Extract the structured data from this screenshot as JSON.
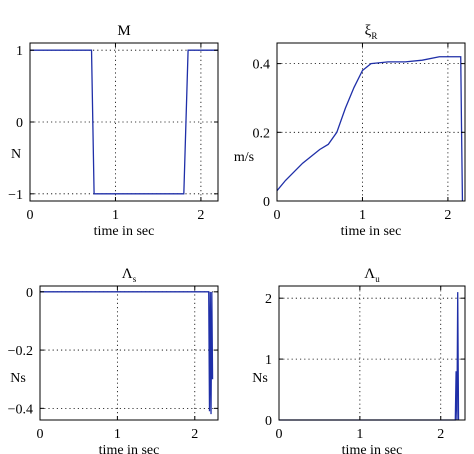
{
  "chart_data": [
    {
      "type": "line",
      "title": "M",
      "xlabel": "time in sec",
      "ylabel": "N",
      "xlim": [
        0,
        2.2
      ],
      "ylim": [
        -1.1,
        1.1
      ],
      "grid": true,
      "xticks": [
        0,
        1,
        2
      ],
      "yticks": [
        -1,
        0,
        1
      ],
      "xtick_labels": [
        "0",
        "1",
        "2"
      ],
      "ytick_labels": [
        "−1",
        "0",
        "1"
      ],
      "series": [
        {
          "color": "#1f2fa8",
          "x": [
            0,
            0.72,
            0.75,
            1.8,
            1.85,
            2.2
          ],
          "y": [
            1,
            1,
            -1,
            -1,
            1,
            1
          ]
        }
      ]
    },
    {
      "type": "line",
      "title": "ξ",
      "title_subscript": "R",
      "xlabel": "time in sec",
      "ylabel": "m/s",
      "xlim": [
        0,
        2.2
      ],
      "ylim": [
        0,
        0.46
      ],
      "grid": true,
      "xticks": [
        0,
        1,
        2
      ],
      "yticks": [
        0,
        0.2,
        0.4
      ],
      "xtick_labels": [
        "0",
        "1",
        "2"
      ],
      "ytick_labels": [
        "0",
        "0.2",
        "0.4"
      ],
      "series": [
        {
          "color": "#1f2fa8",
          "x": [
            0,
            0.1,
            0.3,
            0.5,
            0.6,
            0.7,
            0.8,
            0.9,
            1.0,
            1.1,
            1.3,
            1.5,
            1.7,
            1.9,
            2.0,
            2.1,
            2.15,
            2.16,
            2.17
          ],
          "y": [
            0.03,
            0.06,
            0.11,
            0.15,
            0.165,
            0.2,
            0.27,
            0.33,
            0.38,
            0.4,
            0.405,
            0.405,
            0.41,
            0.42,
            0.42,
            0.42,
            0.42,
            0.2,
            0.0
          ]
        }
      ]
    },
    {
      "type": "line",
      "title": "Λ",
      "title_subscript": "s",
      "xlabel": "time in sec",
      "ylabel": "Ns",
      "xlim": [
        0,
        2.3
      ],
      "ylim": [
        -0.44,
        0.02
      ],
      "grid": true,
      "xticks": [
        0,
        1,
        2
      ],
      "yticks": [
        -0.4,
        -0.2,
        0
      ],
      "xtick_labels": [
        "0",
        "1",
        "2"
      ],
      "ytick_labels": [
        "−0.4",
        "−0.2",
        "0"
      ],
      "series": [
        {
          "color": "#1f2fa8",
          "x": [
            0,
            2.18,
            2.19,
            2.2,
            2.21,
            2.22,
            2.23
          ],
          "y": [
            0,
            0,
            -0.41,
            0,
            -0.42,
            0,
            -0.3
          ]
        }
      ]
    },
    {
      "type": "line",
      "title": "Λ",
      "title_subscript": "u",
      "xlabel": "time in sec",
      "ylabel": "Ns",
      "xlim": [
        0,
        2.3
      ],
      "ylim": [
        0,
        2.2
      ],
      "grid": true,
      "xticks": [
        0,
        1,
        2
      ],
      "yticks": [
        0,
        1,
        2
      ],
      "xtick_labels": [
        "0",
        "1",
        "2"
      ],
      "ytick_labels": [
        "0",
        "1",
        "2"
      ],
      "series": [
        {
          "color": "#1f2fa8",
          "x": [
            0,
            2.18,
            2.19,
            2.2,
            2.21,
            2.22
          ],
          "y": [
            0,
            0,
            0.8,
            0,
            2.1,
            0
          ]
        }
      ]
    }
  ]
}
